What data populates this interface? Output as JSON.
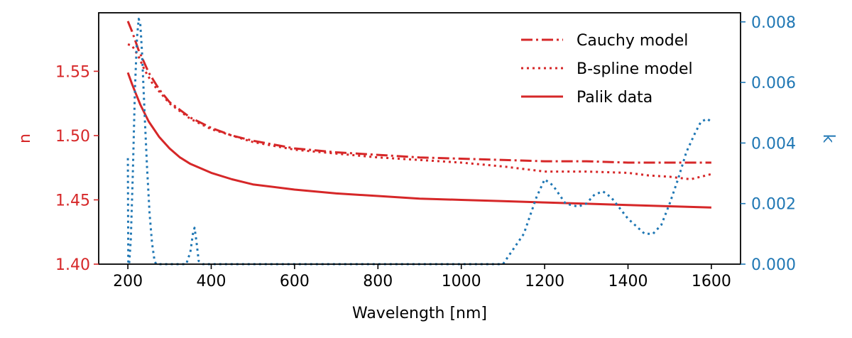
{
  "chart_data": {
    "type": "line",
    "xlabel": "Wavelength [nm]",
    "ylabel_left": "n",
    "ylabel_right": "k",
    "xlim": [
      130,
      1670
    ],
    "ylim_left": [
      1.4,
      1.5955
    ],
    "ylim_right": [
      0.0,
      0.0083
    ],
    "x_ticks": [
      200,
      400,
      600,
      800,
      1000,
      1200,
      1400,
      1600
    ],
    "y_left_ticks": [
      1.4,
      1.45,
      1.5,
      1.55
    ],
    "y_right_ticks": [
      0.0,
      0.002,
      0.004,
      0.006,
      0.008
    ],
    "y_left_tick_labels": [
      "1.40",
      "1.45",
      "1.50",
      "1.55"
    ],
    "y_right_tick_labels": [
      "0.000",
      "0.002",
      "0.004",
      "0.006",
      "0.008"
    ],
    "grid": false,
    "legend_position": "top-right",
    "colors": {
      "n_axis": "#d62728",
      "k_axis": "#1f77b4"
    },
    "series": [
      {
        "name": "Cauchy model",
        "axis": "left",
        "style": "dashdot",
        "color": "#d62728",
        "x": [
          200,
          210,
          225,
          250,
          275,
          300,
          350,
          400,
          450,
          500,
          600,
          700,
          800,
          900,
          1000,
          1100,
          1200,
          1300,
          1400,
          1500,
          1600
        ],
        "y": [
          1.589,
          1.581,
          1.567,
          1.549,
          1.536,
          1.526,
          1.514,
          1.506,
          1.5,
          1.496,
          1.49,
          1.487,
          1.485,
          1.483,
          1.482,
          1.481,
          1.48,
          1.48,
          1.479,
          1.479,
          1.479
        ]
      },
      {
        "name": "B-spline model",
        "axis": "left",
        "style": "dotted",
        "color": "#d62728",
        "x": [
          200,
          210,
          225,
          240,
          260,
          300,
          350,
          400,
          500,
          600,
          700,
          800,
          900,
          1000,
          1100,
          1150,
          1200,
          1300,
          1400,
          1450,
          1500,
          1550,
          1600
        ],
        "y": [
          1.571,
          1.57,
          1.562,
          1.551,
          1.54,
          1.525,
          1.513,
          1.505,
          1.495,
          1.489,
          1.486,
          1.483,
          1.481,
          1.479,
          1.476,
          1.474,
          1.472,
          1.472,
          1.471,
          1.469,
          1.468,
          1.466,
          1.47
        ]
      },
      {
        "name": "Palik data",
        "axis": "left",
        "style": "solid",
        "color": "#d62728",
        "x": [
          200,
          210,
          220,
          230,
          250,
          275,
          300,
          325,
          350,
          400,
          450,
          500,
          600,
          700,
          800,
          900,
          1000,
          1100,
          1200,
          1300,
          1400,
          1500,
          1600
        ],
        "y": [
          1.549,
          1.54,
          1.532,
          1.524,
          1.511,
          1.499,
          1.49,
          1.483,
          1.478,
          1.471,
          1.466,
          1.462,
          1.458,
          1.455,
          1.453,
          1.451,
          1.45,
          1.449,
          1.448,
          1.447,
          1.446,
          1.445,
          1.444
        ]
      },
      {
        "name": "k",
        "axis": "right",
        "style": "dotted",
        "color": "#1f77b4",
        "x": [
          200,
          201,
          203,
          207,
          212,
          217,
          222,
          226,
          230,
          234,
          240,
          246,
          252,
          258,
          264,
          268,
          300,
          340,
          350,
          356,
          360,
          364,
          370,
          380,
          600,
          900,
          1100,
          1150,
          1180,
          1200,
          1220,
          1250,
          1280,
          1300,
          1320,
          1340,
          1360,
          1400,
          1440,
          1460,
          1480,
          1500,
          1520,
          1540,
          1560,
          1575,
          1590,
          1600
        ],
        "y": [
          0.0035,
          0.0,
          0.0,
          0.0008,
          0.003,
          0.0058,
          0.0075,
          0.0081,
          0.0079,
          0.007,
          0.005,
          0.0032,
          0.0017,
          0.0007,
          0.0001,
          0.0,
          0.0,
          0.0,
          0.0004,
          0.001,
          0.0012,
          0.0008,
          0.0001,
          0.0,
          0.0,
          0.0,
          0.0,
          0.001,
          0.0022,
          0.0028,
          0.0026,
          0.002,
          0.0019,
          0.002,
          0.0023,
          0.0024,
          0.0022,
          0.0015,
          0.001,
          0.001,
          0.0013,
          0.002,
          0.0028,
          0.0037,
          0.0043,
          0.0047,
          0.0048,
          0.0047
        ]
      }
    ]
  }
}
